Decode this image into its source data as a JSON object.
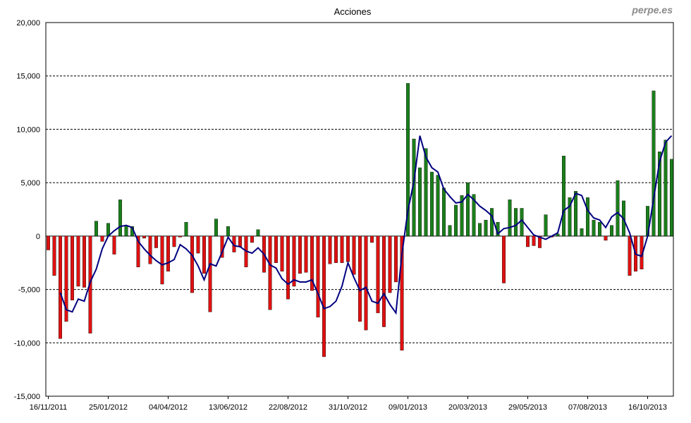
{
  "watermark": "perpe.es",
  "chart_data": {
    "type": "bar",
    "title": "Acciones",
    "xlabel": "",
    "ylabel": "",
    "ylim": [
      -15000,
      20000
    ],
    "yticks": [
      20000,
      15000,
      10000,
      5000,
      0,
      -5000,
      -10000,
      -15000
    ],
    "ytick_labels": [
      "20,000",
      "15,000",
      "10,000",
      "5,000",
      "0",
      "-5,000",
      "-10,000",
      "-15,000"
    ],
    "grid": "horizontal dashed",
    "legend": "none",
    "colors": {
      "positive": "#1a7f1a",
      "negative": "#e01010",
      "line": "#000080",
      "grid": "#000000"
    },
    "categories": [
      "16/11/2011",
      "23/11/2011",
      "30/11/2011",
      "07/12/2011",
      "14/12/2011",
      "21/12/2011",
      "28/12/2011",
      "04/01/2012",
      "11/01/2012",
      "18/01/2012",
      "25/01/2012",
      "01/02/2012",
      "08/02/2012",
      "15/02/2012",
      "22/02/2012",
      "29/02/2012",
      "07/03/2012",
      "14/03/2012",
      "21/03/2012",
      "28/03/2012",
      "04/04/2012",
      "11/04/2012",
      "18/04/2012",
      "25/04/2012",
      "02/05/2012",
      "09/05/2012",
      "16/05/2012",
      "23/05/2012",
      "30/05/2012",
      "06/06/2012",
      "13/06/2012",
      "20/06/2012",
      "27/06/2012",
      "04/07/2012",
      "11/07/2012",
      "18/07/2012",
      "25/07/2012",
      "01/08/2012",
      "08/08/2012",
      "15/08/2012",
      "22/08/2012",
      "29/08/2012",
      "05/09/2012",
      "12/09/2012",
      "19/09/2012",
      "26/09/2012",
      "03/10/2012",
      "10/10/2012",
      "17/10/2012",
      "24/10/2012",
      "31/10/2012",
      "07/11/2012",
      "14/11/2012",
      "21/11/2012",
      "28/11/2012",
      "05/12/2012",
      "12/12/2012",
      "19/12/2012",
      "26/12/2012",
      "02/01/2013",
      "09/01/2013",
      "16/01/2013",
      "23/01/2013",
      "30/01/2013",
      "06/02/2013",
      "13/02/2013",
      "20/02/2013",
      "27/02/2013",
      "06/03/2013",
      "13/03/2013",
      "20/03/2013",
      "27/03/2013",
      "03/04/2013",
      "10/04/2013",
      "17/04/2013",
      "24/04/2013",
      "01/05/2013",
      "08/05/2013",
      "15/05/2013",
      "22/05/2013",
      "29/05/2013",
      "05/06/2013",
      "12/06/2013",
      "19/06/2013",
      "26/06/2013",
      "03/07/2013",
      "10/07/2013",
      "17/07/2013",
      "24/07/2013",
      "31/07/2013",
      "07/08/2013",
      "14/08/2013",
      "21/08/2013",
      "28/08/2013",
      "04/09/2013",
      "11/09/2013",
      "18/09/2013",
      "25/09/2013",
      "02/10/2013",
      "09/10/2013",
      "16/10/2013",
      "23/10/2013",
      "30/10/2013",
      "06/11/2013",
      "13/11/2013"
    ],
    "xtick_labels": [
      "16/11/2011",
      "25/01/2012",
      "04/04/2012",
      "13/06/2012",
      "22/08/2012",
      "31/10/2012",
      "09/01/2013",
      "20/03/2013",
      "29/05/2013",
      "07/08/2013",
      "16/10/2013"
    ],
    "series": [
      {
        "values": [
          -1300,
          -3700,
          -9600,
          -8000,
          -6000,
          -4700,
          -4800,
          -9100,
          1400,
          -500,
          1200,
          -1700,
          3400,
          1000,
          900,
          -2900,
          -200,
          -2600,
          -1100,
          -4500,
          -3300,
          -1000,
          -100,
          1300,
          -5300,
          -1600,
          -3500,
          -7100,
          1600,
          -2000,
          900,
          -1500,
          -1000,
          -2900,
          -600,
          600,
          -3400,
          -6900,
          -2500,
          -3300,
          -5900,
          -4700,
          -3500,
          -3400,
          -5100,
          -7600,
          -11300,
          -2600,
          -2500,
          -2500,
          -2400,
          -3600,
          -8000,
          -8800,
          -600,
          -7200,
          -8500,
          -5300,
          -4300,
          -10700,
          14300,
          9100,
          6400,
          8200,
          6000,
          5700,
          4500,
          1000,
          2900,
          3800,
          5000,
          3900,
          1200,
          1500,
          2600,
          1300,
          -4400,
          3400,
          2600,
          2600,
          -1000,
          -900,
          -1100,
          2000,
          -100,
          200,
          7500,
          3600,
          4200,
          700,
          3600,
          1500,
          1300,
          -400,
          1000,
          5200,
          3300,
          -3700,
          -3300,
          -3100,
          2800,
          13600,
          7900,
          9000,
          7200
        ]
      },
      {
        "type": "line",
        "values": [
          null,
          null,
          -5300,
          -6900,
          -7100,
          -5900,
          -6100,
          -4300,
          -3100,
          -1200,
          0,
          500,
          900,
          1000,
          800,
          -500,
          -1200,
          -1800,
          -2300,
          -2700,
          -2500,
          -2200,
          -800,
          -1200,
          -1800,
          -2800,
          -4100,
          -2600,
          -2800,
          -1500,
          -100,
          -900,
          -1000,
          -1400,
          -1600,
          -1100,
          -1700,
          -2700,
          -3000,
          -4000,
          -4500,
          -4100,
          -4300,
          -4300,
          -4100,
          -5400,
          -6800,
          -6600,
          -6100,
          -4700,
          -2500,
          -3900,
          -5100,
          -4800,
          -6100,
          -6300,
          -5400,
          -6400,
          -7200,
          -1700,
          2400,
          5100,
          9400,
          7400,
          6400,
          6000,
          4400,
          3700,
          3100,
          3200,
          3900,
          3400,
          2800,
          2400,
          1900,
          200,
          700,
          800,
          1000,
          1500,
          800,
          100,
          -100,
          -300,
          0,
          300,
          2400,
          2800,
          4000,
          3800,
          2400,
          1700,
          1500,
          800,
          1800,
          2200,
          1600,
          300,
          -1700,
          -1900,
          0,
          3500,
          7000,
          8800,
          9400
        ]
      }
    ]
  }
}
